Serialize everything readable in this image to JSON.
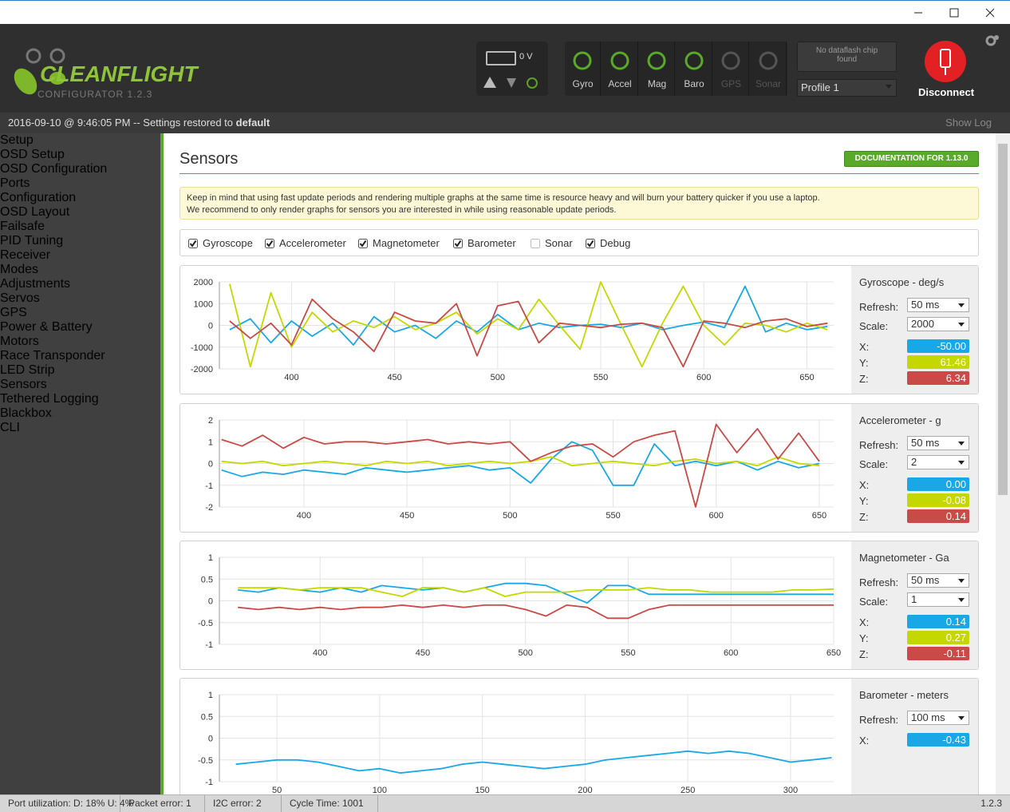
{
  "header": {
    "logo": "CLEANFLIGHT",
    "version": "CONFIGURATOR  1.2.3",
    "battery": "0 V",
    "sensors": [
      {
        "label": "Gyro",
        "active": true
      },
      {
        "label": "Accel",
        "active": true
      },
      {
        "label": "Mag",
        "active": true
      },
      {
        "label": "Baro",
        "active": true
      },
      {
        "label": "GPS",
        "active": false
      },
      {
        "label": "Sonar",
        "active": false
      }
    ],
    "dataflash": "No dataflash chip found",
    "profile": "Profile 1",
    "connect": "Disconnect"
  },
  "log": {
    "message": "2016-09-10 @ 9:46:05 PM -- Settings restored to ",
    "emphasis": "default",
    "show_log": "Show Log"
  },
  "menu": {
    "items": [
      "Setup",
      "OSD Setup",
      "OSD Configuration",
      "Ports",
      "Configuration",
      "OSD Layout",
      "Failsafe",
      "PID Tuning",
      "Receiver",
      "Modes",
      "Adjustments",
      "Servos",
      "GPS",
      "Power & Battery",
      "Motors",
      "Race Transponder",
      "LED Strip",
      "Sensors",
      "Tethered Logging",
      "Blackbox",
      "CLI"
    ],
    "active": "Sensors"
  },
  "content": {
    "title": "Sensors",
    "doc_button": "DOCUMENTATION FOR 1.13.0",
    "notice": [
      "Keep in mind that using fast update periods and rendering multiple graphs at the same time is resource heavy and will burn your battery quicker if you use a laptop.",
      "We recommend to only render graphs for sensors you are interested in while using reasonable update periods."
    ],
    "checkboxes": [
      {
        "label": "Gyroscope",
        "checked": true
      },
      {
        "label": "Accelerometer",
        "checked": true
      },
      {
        "label": "Magnetometer",
        "checked": true
      },
      {
        "label": "Barometer",
        "checked": true
      },
      {
        "label": "Sonar",
        "checked": false
      },
      {
        "label": "Debug",
        "checked": true
      }
    ],
    "panels": [
      {
        "title": "Gyroscope - deg/s",
        "settings": [
          {
            "label": "Refresh:",
            "value": "50 ms"
          },
          {
            "label": "Scale:",
            "value": "2000"
          }
        ],
        "readouts": [
          {
            "label": "X:",
            "value": "-50.00"
          },
          {
            "label": "Y:",
            "value": "61.46"
          },
          {
            "label": "Z:",
            "value": "6.34"
          }
        ],
        "chart_data": {
          "type": "line",
          "grid": true,
          "xlim": [
            365,
            663
          ],
          "xticks": [
            400,
            450,
            500,
            550,
            600,
            650
          ],
          "ylim": [
            -2000,
            2000
          ],
          "yticks": [
            2000,
            1000,
            0,
            -1000,
            -2000
          ],
          "x": [
            370,
            380,
            390,
            400,
            410,
            420,
            430,
            440,
            450,
            460,
            470,
            480,
            490,
            500,
            510,
            520,
            530,
            540,
            550,
            560,
            570,
            580,
            590,
            600,
            610,
            620,
            630,
            640,
            650,
            660
          ],
          "series": [
            {
              "name": "X",
              "color": "#18a8e8",
              "values": [
                -200,
                300,
                -800,
                200,
                -500,
                100,
                -900,
                400,
                -300,
                0,
                -600,
                200,
                -300,
                500,
                -200,
                100,
                -100,
                0,
                50,
                -100,
                100,
                -200,
                0,
                150,
                -100,
                1800,
                -300,
                100,
                -200,
                -50
              ]
            },
            {
              "name": "Y",
              "color": "#c4d800",
              "values": [
                1900,
                -1900,
                1500,
                -1000,
                600,
                -300,
                200,
                -100,
                400,
                -200,
                100,
                600,
                -400,
                300,
                -200,
                1200,
                0,
                -1100,
                2000,
                0,
                -1900,
                100,
                1800,
                0,
                -900,
                100,
                0,
                -300,
                100,
                -200
              ]
            },
            {
              "name": "Z",
              "color": "#c94a46",
              "values": [
                200,
                -600,
                100,
                -900,
                1200,
                300,
                -300,
                -1200,
                600,
                200,
                100,
                1000,
                -1400,
                900,
                1100,
                -800,
                100,
                0,
                -100,
                50,
                100,
                -100,
                -1900,
                200,
                100,
                -100,
                200,
                300,
                -50,
                100
              ]
            }
          ]
        }
      },
      {
        "title": "Accelerometer - g",
        "settings": [
          {
            "label": "Refresh:",
            "value": "50 ms"
          },
          {
            "label": "Scale:",
            "value": "2"
          }
        ],
        "readouts": [
          {
            "label": "X:",
            "value": "0.00"
          },
          {
            "label": "Y:",
            "value": "-0.08"
          },
          {
            "label": "Z:",
            "value": "0.14"
          }
        ],
        "chart_data": {
          "type": "line",
          "grid": true,
          "xlim": [
            359,
            657
          ],
          "xticks": [
            400,
            450,
            500,
            550,
            600,
            650
          ],
          "ylim": [
            -2,
            2
          ],
          "yticks": [
            2,
            1,
            0,
            -1,
            -2
          ],
          "x": [
            360,
            370,
            380,
            390,
            400,
            410,
            420,
            430,
            440,
            450,
            460,
            470,
            480,
            490,
            500,
            510,
            520,
            530,
            540,
            550,
            560,
            570,
            580,
            590,
            600,
            610,
            620,
            630,
            640,
            650
          ],
          "series": [
            {
              "name": "X",
              "color": "#18a8e8",
              "values": [
                -0.3,
                -0.6,
                -0.4,
                -0.5,
                -0.3,
                -0.4,
                -0.5,
                -0.2,
                -0.3,
                -0.4,
                -0.3,
                -0.2,
                -0.1,
                -0.3,
                -0.2,
                -0.9,
                0.2,
                1.0,
                0.6,
                -1.0,
                -1.0,
                0.9,
                -0.1,
                0.1,
                -0.1,
                0.1,
                -0.3,
                0.1,
                -0.2,
                0.0
              ]
            },
            {
              "name": "Y",
              "color": "#c4d800",
              "values": [
                0.1,
                0,
                0.1,
                -0.1,
                0,
                0.1,
                0,
                -0.1,
                0.1,
                0,
                0.1,
                -0.1,
                0,
                0.1,
                0,
                0.1,
                0.3,
                -0.1,
                0,
                0.1,
                0,
                -0.1,
                0.1,
                0.2,
                0,
                0.1,
                -0.1,
                0.3,
                0,
                -0.1
              ]
            },
            {
              "name": "Z",
              "color": "#c94a46",
              "values": [
                1.1,
                0.8,
                1.3,
                0.7,
                1.2,
                0.9,
                1.0,
                1.0,
                0.9,
                1.0,
                1.1,
                0.9,
                1.0,
                0.9,
                1.0,
                0.1,
                0.5,
                0.8,
                0.9,
                0.3,
                1.0,
                1.3,
                1.5,
                -2.0,
                1.8,
                0.5,
                1.6,
                0.2,
                1.4,
                0.1
              ]
            }
          ]
        }
      },
      {
        "title": "Magnetometer - Ga",
        "settings": [
          {
            "label": "Refresh:",
            "value": "50 ms"
          },
          {
            "label": "Scale:",
            "value": "1"
          }
        ],
        "readouts": [
          {
            "label": "X:",
            "value": "0.14"
          },
          {
            "label": "Y:",
            "value": "0.27"
          },
          {
            "label": "Z:",
            "value": "-0.11"
          }
        ],
        "chart_data": {
          "type": "line",
          "grid": true,
          "xlim": [
            351,
            650
          ],
          "xticks": [
            400,
            450,
            500,
            550,
            600,
            650
          ],
          "ylim": [
            -1,
            1
          ],
          "yticks": [
            1,
            0.5,
            0,
            -0.5,
            -1
          ],
          "x": [
            360,
            370,
            380,
            390,
            400,
            410,
            420,
            430,
            440,
            450,
            460,
            470,
            480,
            490,
            500,
            510,
            520,
            530,
            540,
            550,
            560,
            570,
            580,
            590,
            600,
            610,
            620,
            630,
            640,
            650
          ],
          "series": [
            {
              "name": "X",
              "color": "#18a8e8",
              "values": [
                0.25,
                0.2,
                0.3,
                0.25,
                0.2,
                0.3,
                0.2,
                0.35,
                0.3,
                0.25,
                0.3,
                0.2,
                0.3,
                0.4,
                0.4,
                0.35,
                0.15,
                -0.05,
                0.35,
                0.35,
                0.15,
                0.15,
                0.15,
                0.15,
                0.15,
                0.15,
                0.15,
                0.15,
                0.15,
                0.15
              ]
            },
            {
              "name": "Y",
              "color": "#c4d800",
              "values": [
                0.3,
                0.3,
                0.3,
                0.25,
                0.3,
                0.3,
                0.3,
                0.2,
                0.1,
                0.3,
                0.3,
                0.2,
                0.3,
                0.1,
                0.2,
                0.2,
                0.2,
                0.25,
                0.25,
                0.25,
                0.3,
                0.25,
                0.25,
                0.2,
                0.2,
                0.2,
                0.2,
                0.25,
                0.25,
                0.27
              ]
            },
            {
              "name": "Z",
              "color": "#c94a46",
              "values": [
                -0.15,
                -0.2,
                -0.15,
                -0.2,
                -0.15,
                -0.2,
                -0.15,
                -0.15,
                -0.1,
                -0.15,
                -0.1,
                -0.15,
                -0.1,
                -0.1,
                -0.2,
                -0.35,
                -0.1,
                -0.15,
                -0.4,
                -0.4,
                -0.2,
                -0.1,
                -0.1,
                -0.1,
                -0.1,
                -0.1,
                -0.1,
                -0.1,
                -0.1,
                -0.1
              ]
            }
          ]
        }
      },
      {
        "title": "Barometer - meters",
        "settings": [
          {
            "label": "Refresh:",
            "value": "100 ms"
          }
        ],
        "readouts": [
          {
            "label": "X:",
            "value": "-0.43"
          }
        ],
        "chart_data": {
          "type": "line",
          "grid": true,
          "xlim": [
            22,
            321
          ],
          "xticks": [
            50,
            100,
            150,
            200,
            250,
            300
          ],
          "ylim": [
            -1,
            1
          ],
          "yticks": [
            1,
            0.5,
            0,
            -0.5,
            -1
          ],
          "x": [
            30,
            40,
            50,
            60,
            70,
            80,
            90,
            100,
            110,
            120,
            130,
            140,
            150,
            160,
            170,
            180,
            190,
            200,
            210,
            220,
            230,
            240,
            250,
            260,
            270,
            280,
            290,
            300,
            310,
            320
          ],
          "series": [
            {
              "name": "X",
              "color": "#18a8e8",
              "values": [
                -0.6,
                -0.55,
                -0.5,
                -0.5,
                -0.55,
                -0.65,
                -0.75,
                -0.7,
                -0.8,
                -0.75,
                -0.7,
                -0.6,
                -0.55,
                -0.6,
                -0.65,
                -0.7,
                -0.65,
                -0.6,
                -0.5,
                -0.45,
                -0.4,
                -0.35,
                -0.3,
                -0.35,
                -0.3,
                -0.35,
                -0.45,
                -0.55,
                -0.5,
                -0.45
              ]
            }
          ]
        }
      }
    ]
  },
  "status": {
    "items": [
      "Port utilization: D: 18% U: 4%",
      "Packet error: 1",
      "I2C error: 2",
      "Cycle Time: 1001"
    ],
    "version": "1.2.3"
  }
}
